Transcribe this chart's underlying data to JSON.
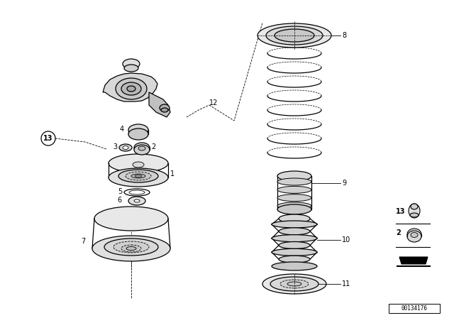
{
  "background_color": "#ffffff",
  "line_color": "#000000",
  "diagram_id": "00134176",
  "fig_w": 6.4,
  "fig_h": 4.48,
  "dpi": 100
}
